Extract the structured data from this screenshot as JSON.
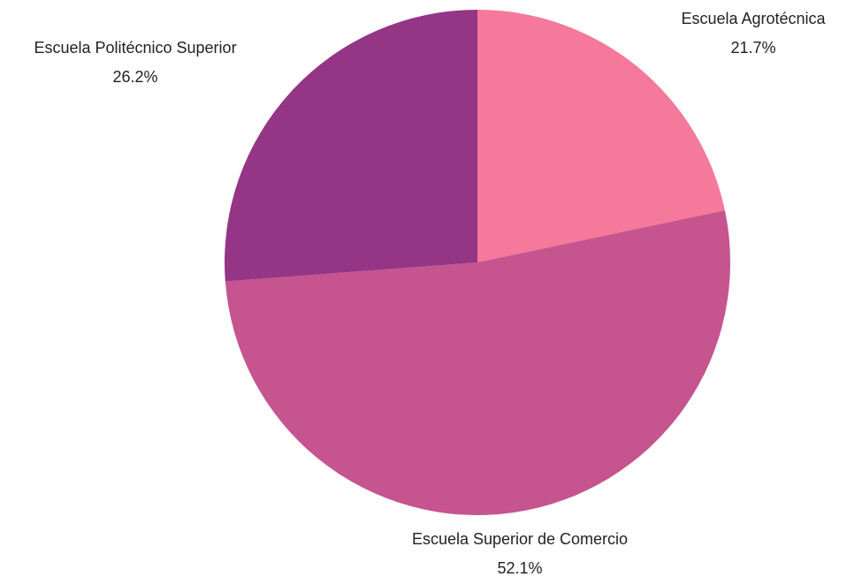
{
  "chart_data": {
    "type": "pie",
    "categories": [
      "Escuela Agrotécnica",
      "Escuela Superior de Comercio",
      "Escuela Politécnico Superior"
    ],
    "values": [
      21.7,
      52.1,
      26.2
    ],
    "value_labels": [
      "21.7%",
      "52.1%",
      "26.2%"
    ],
    "colors": [
      "#f4799a",
      "#c5548f",
      "#943586"
    ]
  }
}
